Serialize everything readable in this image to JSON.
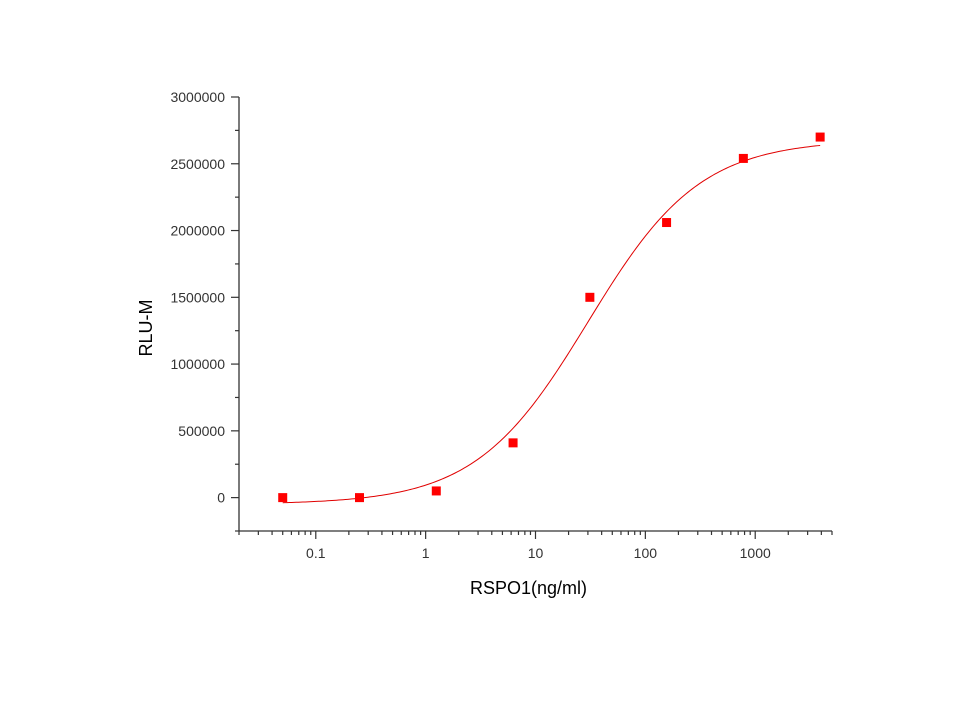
{
  "chart_data": {
    "type": "scatter",
    "xlabel": "RSPO1(ng/ml)",
    "ylabel": "RLU-M",
    "x_scale": "log",
    "xlim": [
      0.02,
      5000
    ],
    "ylim": [
      -250000,
      3000000
    ],
    "x_ticks": [
      {
        "value": 0.1,
        "label": "0.1"
      },
      {
        "value": 1,
        "label": "1"
      },
      {
        "value": 10,
        "label": "10"
      },
      {
        "value": 100,
        "label": "100"
      },
      {
        "value": 1000,
        "label": "1000"
      }
    ],
    "y_ticks": [
      {
        "value": 0,
        "label": "0"
      },
      {
        "value": 500000,
        "label": "500000"
      },
      {
        "value": 1000000,
        "label": "1000000"
      },
      {
        "value": 1500000,
        "label": "1500000"
      },
      {
        "value": 2000000,
        "label": "2000000"
      },
      {
        "value": 2500000,
        "label": "2500000"
      },
      {
        "value": 3000000,
        "label": "3000000"
      }
    ],
    "points": [
      {
        "x": 0.05,
        "y": 0
      },
      {
        "x": 0.25,
        "y": 0
      },
      {
        "x": 1.25,
        "y": 50000
      },
      {
        "x": 6.25,
        "y": 410000
      },
      {
        "x": 31.25,
        "y": 1500000
      },
      {
        "x": 156,
        "y": 2060000
      },
      {
        "x": 780,
        "y": 2540000
      },
      {
        "x": 3900,
        "y": 2700000
      }
    ],
    "fit": {
      "model": "four-parameter logistic",
      "bottom": -50000,
      "top": 2680000,
      "ec50": 30,
      "hill": 0.85,
      "x_from": 0.05,
      "x_to": 3900
    },
    "point_color": "#ff0000",
    "curve_color": "#e00000",
    "grid": false
  }
}
